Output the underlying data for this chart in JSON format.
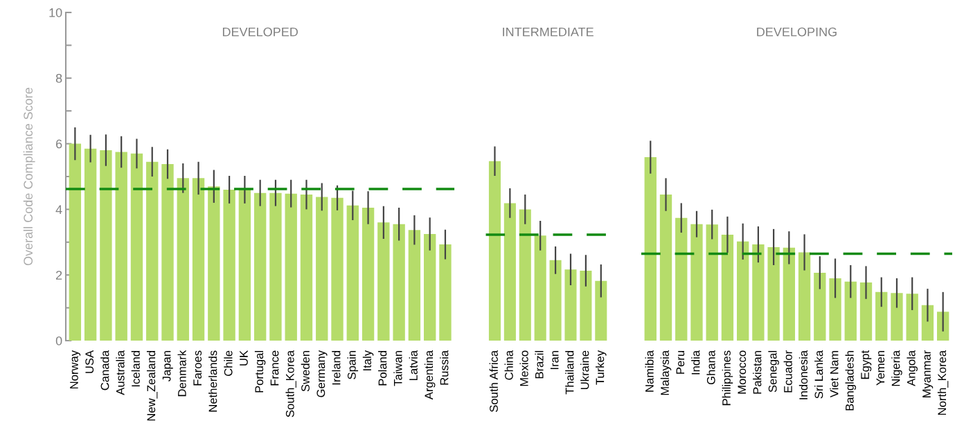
{
  "chart_data": [
    {
      "type": "bar",
      "title": "DEVELOPED",
      "ylabel": "Overall Code Compliance Score",
      "categories": [
        "Norway",
        "USA",
        "Canada",
        "Australia",
        "Iceland",
        "New_Zealand",
        "Japan",
        "Denmark",
        "Faroes",
        "Netherlands",
        "Chile",
        "UK",
        "Portugal",
        "France",
        "South_Korea",
        "Sweden",
        "Germany",
        "Ireland",
        "Spain",
        "Italy",
        "Poland",
        "Taiwan",
        "Latvia",
        "Argentina",
        "Russia"
      ],
      "values": [
        6.0,
        5.85,
        5.8,
        5.75,
        5.7,
        5.45,
        5.38,
        4.95,
        4.95,
        4.7,
        4.6,
        4.6,
        4.5,
        4.5,
        4.48,
        4.45,
        4.38,
        4.35,
        4.12,
        4.05,
        3.6,
        3.55,
        3.37,
        3.25,
        2.93
      ],
      "errors": [
        0.5,
        0.42,
        0.48,
        0.48,
        0.45,
        0.45,
        0.45,
        0.45,
        0.5,
        0.5,
        0.42,
        0.42,
        0.4,
        0.4,
        0.42,
        0.45,
        0.42,
        0.38,
        0.45,
        0.5,
        0.5,
        0.5,
        0.45,
        0.5,
        0.45
      ],
      "color": "#b5dc6a",
      "ylim": [
        0,
        10
      ],
      "yticks": [
        0,
        {
          "value": 1,
          "label": null
        },
        2,
        {
          "value": 3,
          "label": null
        },
        4,
        {
          "value": 5,
          "label": null
        },
        6,
        {
          "value": 7,
          "label": null
        },
        8,
        {
          "value": 9,
          "label": null
        },
        10
      ],
      "ref_lines": [
        {
          "axis": "y",
          "value": 4.62,
          "color": "#138a13",
          "line_style": "dashed"
        }
      ]
    },
    {
      "type": "bar",
      "title": "INTERMEDIATE",
      "categories": [
        "South Africa",
        "China",
        "Mexico",
        "Brazil",
        "Iran",
        "Thailand",
        "Ukraine",
        "Turkey"
      ],
      "values": [
        5.47,
        4.19,
        4.0,
        3.2,
        2.45,
        2.17,
        2.13,
        1.82
      ],
      "errors": [
        0.45,
        0.45,
        0.45,
        0.45,
        0.42,
        0.48,
        0.48,
        0.5
      ],
      "color": "#b5dc6a",
      "ylim": [
        0,
        10
      ],
      "tick_labels": "x",
      "ref_lines": [
        {
          "axis": "y",
          "value": 3.23,
          "color": "#138a13",
          "line_style": "dashed"
        }
      ]
    },
    {
      "type": "bar",
      "title": "DEVELOPING",
      "categories": [
        "Namibia",
        "Malaysia",
        "Peru",
        "India",
        "Ghana",
        "Philippines",
        "Morocco",
        "Pakistan",
        "Senegal",
        "Ecuador",
        "Indonesia",
        "Sri Lanka",
        "Viet Nam",
        "Bangladesh",
        "Egypt",
        "Yemen",
        "Nigeria",
        "Angola",
        "Myanmar",
        "North_Korea"
      ],
      "values": [
        5.59,
        4.45,
        3.74,
        3.55,
        3.54,
        3.23,
        3.02,
        2.93,
        2.85,
        2.83,
        2.69,
        2.07,
        1.9,
        1.8,
        1.77,
        1.48,
        1.45,
        1.43,
        1.08,
        0.88
      ],
      "errors": [
        0.5,
        0.5,
        0.45,
        0.4,
        0.45,
        0.55,
        0.55,
        0.55,
        0.55,
        0.5,
        0.55,
        0.5,
        0.6,
        0.5,
        0.5,
        0.45,
        0.45,
        0.5,
        0.5,
        0.6
      ],
      "color": "#b5dc6a",
      "ylim": [
        0,
        10
      ],
      "tick_labels": "x",
      "ref_lines": [
        {
          "axis": "y",
          "value": 2.65,
          "color": "#138a13",
          "line_style": "dashed"
        }
      ]
    }
  ]
}
